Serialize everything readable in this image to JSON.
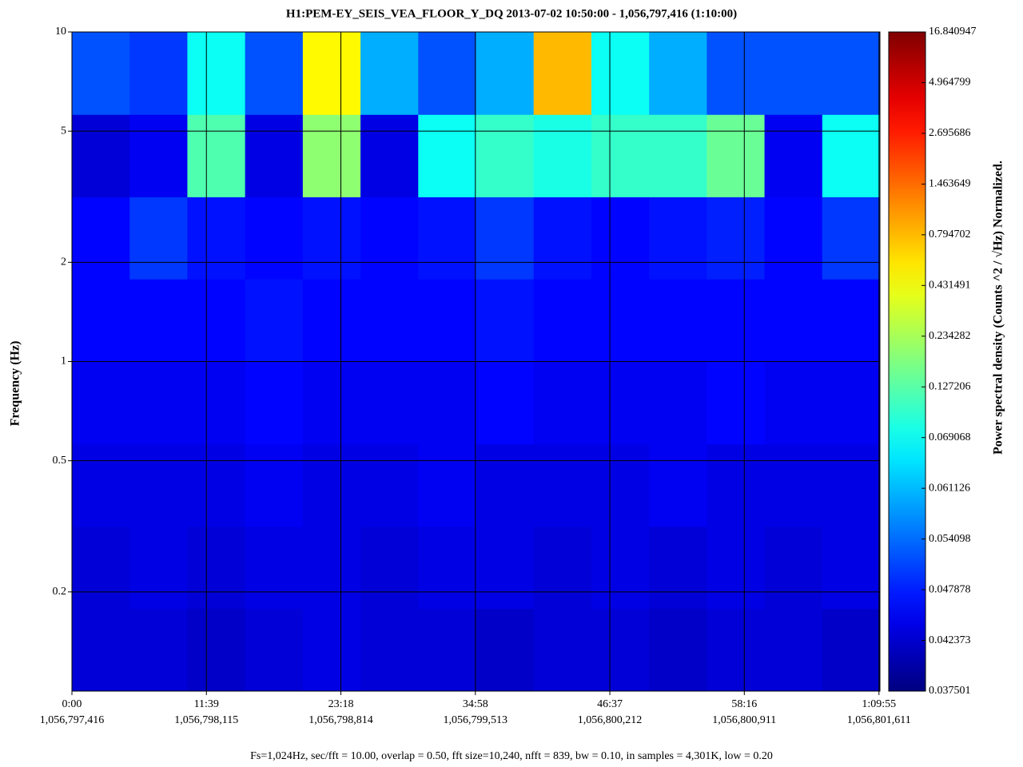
{
  "chart_data": {
    "type": "heatmap",
    "title": "H1:PEM-EY_SEIS_VEA_FLOOR_Y_DQ 2013-07-02 10:50:00 - 1,056,797,416 (1:10:00)",
    "ylabel": "Frequency (Hz)",
    "zlabel": "Power spectral density (Counts ^2 / √Hz) Normalized.",
    "footer": "Fs=1,024Hz, sec/fft = 10.00, overlap = 0.50, fft size=10,240, nfft = 839, bw = 0.10, in samples = 4,301K, low = 0.20",
    "yscale": "log",
    "grid": true,
    "xlim": [
      0,
      4200
    ],
    "xticks": [
      {
        "value": 0,
        "label": "0:00"
      },
      {
        "value": 699,
        "label": "11:39"
      },
      {
        "value": 1398,
        "label": "23:18"
      },
      {
        "value": 2097,
        "label": "34:58"
      },
      {
        "value": 2796,
        "label": "46:37"
      },
      {
        "value": 3495,
        "label": "58:16"
      },
      {
        "value": 4195,
        "label": "1:09:55"
      }
    ],
    "x2lim": [
      1056797416,
      1056801616
    ],
    "x2ticks": [
      {
        "value": 1056797416,
        "label": "1,056,797,416"
      },
      {
        "value": 1056798115,
        "label": "1,056,798,115"
      },
      {
        "value": 1056798814,
        "label": "1,056,798,814"
      },
      {
        "value": 1056799513,
        "label": "1,056,799,513"
      },
      {
        "value": 1056800212,
        "label": "1,056,800,212"
      },
      {
        "value": 1056800911,
        "label": "1,056,800,911"
      },
      {
        "value": 1056801611,
        "label": "1,056,801,611"
      }
    ],
    "ylim": [
      0.1,
      10
    ],
    "yticks": [
      0.2,
      0.5,
      1,
      2,
      5,
      10
    ],
    "zticks": [
      0.037501,
      0.042373,
      0.047878,
      0.054098,
      0.061126,
      0.069068,
      0.127206,
      0.234282,
      0.431491,
      0.794702,
      1.463649,
      2.695686,
      4.964799,
      16.840947
    ],
    "x_edges": [
      0,
      300,
      600,
      900,
      1200,
      1500,
      1800,
      2100,
      2400,
      2700,
      3000,
      3300,
      3600,
      3900,
      4200
    ],
    "y_edges": [
      0.1,
      0.178,
      0.316,
      0.562,
      1,
      1.78,
      3.16,
      5.62,
      10
    ],
    "z": [
      [
        0.043,
        0.043,
        0.042,
        0.043,
        0.044,
        0.043,
        0.043,
        0.042,
        0.043,
        0.043,
        0.042,
        0.043,
        0.043,
        0.042
      ],
      [
        0.043,
        0.044,
        0.043,
        0.044,
        0.044,
        0.043,
        0.044,
        0.044,
        0.043,
        0.044,
        0.043,
        0.044,
        0.043,
        0.044
      ],
      [
        0.044,
        0.044,
        0.044,
        0.045,
        0.044,
        0.044,
        0.045,
        0.044,
        0.044,
        0.044,
        0.045,
        0.044,
        0.044,
        0.044
      ],
      [
        0.045,
        0.045,
        0.045,
        0.046,
        0.045,
        0.045,
        0.045,
        0.046,
        0.045,
        0.045,
        0.045,
        0.046,
        0.045,
        0.045
      ],
      [
        0.046,
        0.046,
        0.046,
        0.047,
        0.046,
        0.046,
        0.046,
        0.047,
        0.046,
        0.046,
        0.046,
        0.046,
        0.046,
        0.046
      ],
      [
        0.046,
        0.05,
        0.047,
        0.046,
        0.047,
        0.046,
        0.047,
        0.05,
        0.047,
        0.046,
        0.047,
        0.048,
        0.046,
        0.05
      ],
      [
        0.043,
        0.045,
        0.12,
        0.044,
        0.2,
        0.044,
        0.07,
        0.1,
        0.08,
        0.1,
        0.1,
        0.15,
        0.045,
        0.07
      ],
      [
        0.052,
        0.05,
        0.07,
        0.052,
        0.5,
        0.06,
        0.052,
        0.06,
        0.8,
        0.07,
        0.06,
        0.052,
        0.052,
        0.052
      ]
    ]
  }
}
